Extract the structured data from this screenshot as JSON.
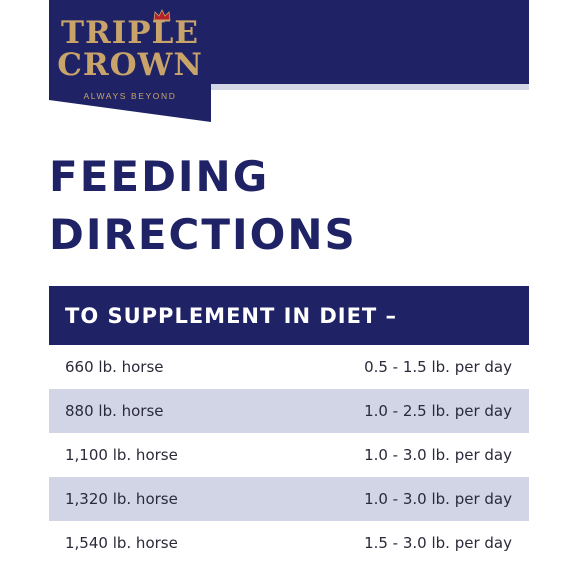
{
  "brand": {
    "name_line1": "TRIPLE",
    "name_line2": "CROWN",
    "tagline": "ALWAYS BEYOND",
    "colors": {
      "navy": "#1f2366",
      "gold": "#c9a46a",
      "row_alt": "#d2d5e6"
    },
    "icon": "crown-icon"
  },
  "page": {
    "title_line1": "FEEDING",
    "title_line2": "DIRECTIONS"
  },
  "table": {
    "heading": "TO SUPPLEMENT IN DIET –",
    "rows": [
      {
        "weight": "660 lb. horse",
        "amount": "0.5 - 1.5 lb. per day"
      },
      {
        "weight": "880 lb. horse",
        "amount": "1.0 - 2.5 lb. per day"
      },
      {
        "weight": "1,100 lb. horse",
        "amount": "1.0 - 3.0 lb. per day"
      },
      {
        "weight": "1,320 lb. horse",
        "amount": "1.0 - 3.0 lb. per day"
      },
      {
        "weight": "1,540 lb. horse",
        "amount": "1.5 - 3.0 lb. per day"
      }
    ]
  }
}
